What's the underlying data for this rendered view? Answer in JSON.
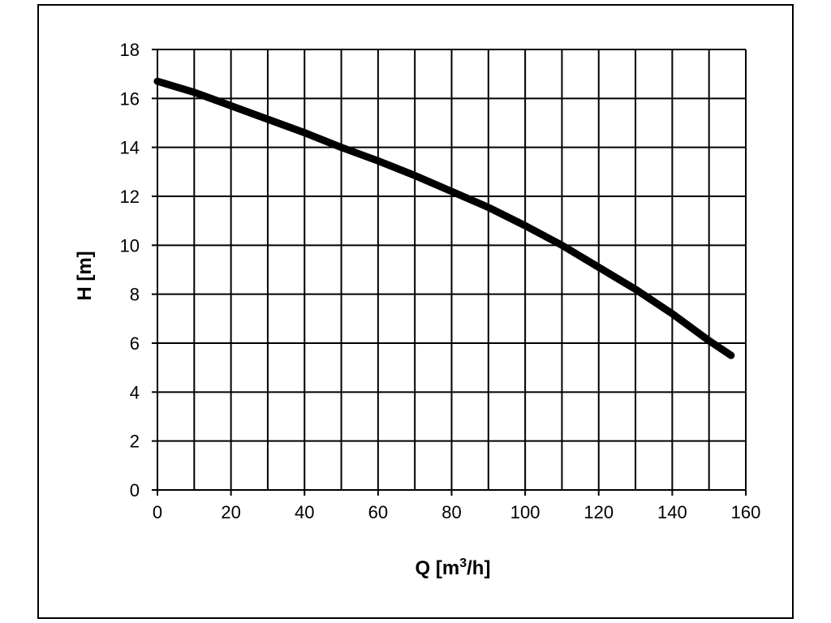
{
  "chart_data": {
    "type": "line",
    "title": "",
    "xlabel_main": "Q [m",
    "xlabel_sup": "3",
    "xlabel_tail": "/h]",
    "ylabel": "H [m]",
    "xlim": [
      0,
      160
    ],
    "ylim": [
      0,
      18
    ],
    "x_ticks": [
      "0",
      "20",
      "40",
      "60",
      "80",
      "100",
      "120",
      "140",
      "160"
    ],
    "y_ticks": [
      "0",
      "2",
      "4",
      "6",
      "8",
      "10",
      "12",
      "14",
      "16",
      "18"
    ],
    "x_grid_step": 10,
    "y_grid_step": 2,
    "grid": true,
    "legend": "none",
    "series": [
      {
        "x": [
          0,
          10,
          20,
          30,
          40,
          50,
          60,
          70,
          80,
          90,
          100,
          110,
          120,
          130,
          140,
          150,
          156
        ],
        "y": [
          16.7,
          16.25,
          15.7,
          15.15,
          14.6,
          14.0,
          13.45,
          12.85,
          12.2,
          11.55,
          10.8,
          10.0,
          9.1,
          8.2,
          7.2,
          6.1,
          5.5
        ],
        "color": "#000000"
      }
    ]
  }
}
